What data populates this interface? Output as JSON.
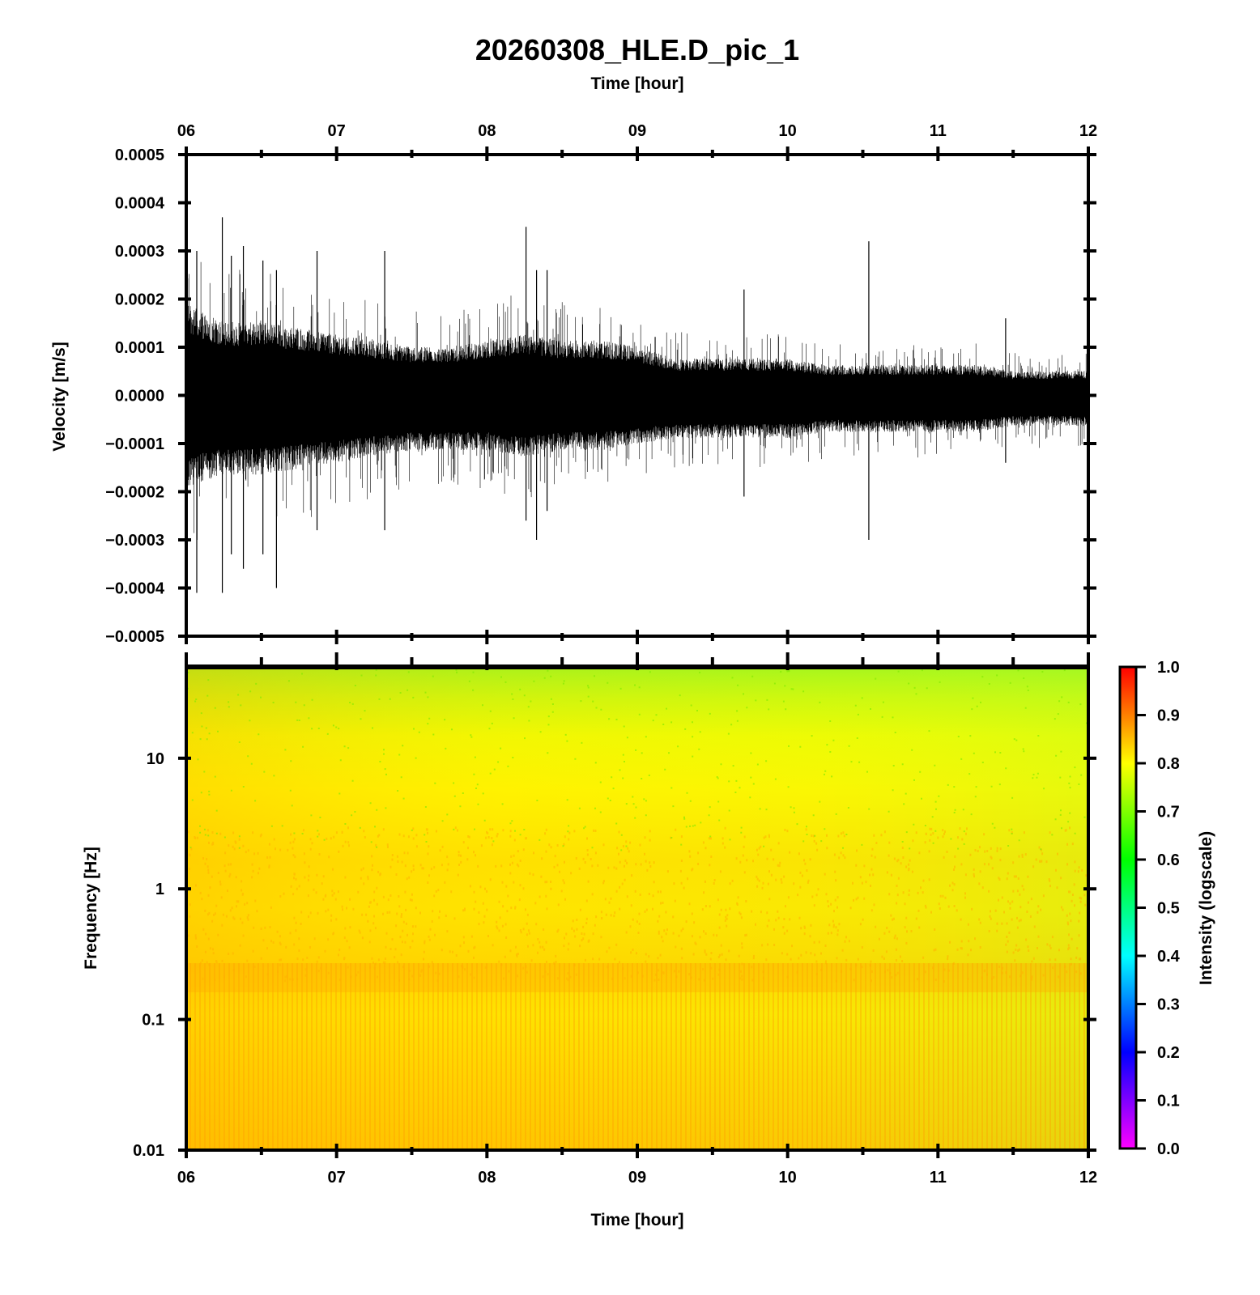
{
  "chart_data": [
    {
      "type": "line",
      "title": "20260308_HLE.D_pic_1",
      "top_xlabel": "Time [hour]",
      "xlabel": "",
      "ylabel": "Velocity [m/s]",
      "xlim": [
        6,
        12
      ],
      "ylim": [
        -0.0005,
        0.0005
      ],
      "x_ticks": [
        "06",
        "07",
        "08",
        "09",
        "10",
        "11",
        "12"
      ],
      "y_ticks": [
        "0.0005",
        "0.0004",
        "0.0003",
        "0.0002",
        "0.0001",
        "0.0000",
        "−0.0001",
        "−0.0002",
        "−0.0003",
        "−0.0004",
        "−0.0005"
      ],
      "series": [
        {
          "color": "#000000",
          "envelope": {
            "x": [
              6.0,
              6.25,
              6.5,
              6.75,
              7.0,
              7.25,
              7.5,
              7.75,
              8.0,
              8.25,
              8.5,
              8.75,
              9.0,
              9.25,
              9.5,
              9.75,
              10.0,
              10.25,
              10.5,
              10.75,
              11.0,
              11.25,
              11.5,
              11.75,
              12.0
            ],
            "upper": [
              0.00015,
              0.00012,
              0.00012,
              0.00011,
              0.0001,
              9e-05,
              8e-05,
              8e-05,
              9e-05,
              0.0001,
              9e-05,
              9e-05,
              8e-05,
              6e-05,
              6e-05,
              6e-05,
              6e-05,
              5e-05,
              5e-05,
              5e-05,
              5e-05,
              5e-05,
              4e-05,
              4e-05,
              4e-05
            ],
            "lower": [
              -0.00015,
              -0.00013,
              -0.00013,
              -0.00012,
              -0.00011,
              -0.0001,
              -9e-05,
              -9e-05,
              -9e-05,
              -0.0001,
              -9e-05,
              -9e-05,
              -8e-05,
              -7e-05,
              -7e-05,
              -7e-05,
              -7e-05,
              -6e-05,
              -6e-05,
              -6e-05,
              -6e-05,
              -6e-05,
              -5e-05,
              -5e-05,
              -5e-05
            ]
          },
          "spikes": [
            {
              "x": 6.07,
              "ymax": 0.0003,
              "ymin": -0.00041
            },
            {
              "x": 6.24,
              "ymax": 0.00037,
              "ymin": -0.00041
            },
            {
              "x": 6.3,
              "ymax": 0.00029,
              "ymin": -0.00033
            },
            {
              "x": 6.38,
              "ymax": 0.00031,
              "ymin": -0.00036
            },
            {
              "x": 6.51,
              "ymax": 0.00028,
              "ymin": -0.00033
            },
            {
              "x": 6.6,
              "ymax": 0.00026,
              "ymin": -0.0004
            },
            {
              "x": 6.87,
              "ymax": 0.0003,
              "ymin": -0.00028
            },
            {
              "x": 7.32,
              "ymax": 0.0003,
              "ymin": -0.00028
            },
            {
              "x": 8.26,
              "ymax": 0.00035,
              "ymin": -0.00026
            },
            {
              "x": 8.33,
              "ymax": 0.00026,
              "ymin": -0.0003
            },
            {
              "x": 8.4,
              "ymax": 0.00026,
              "ymin": -0.00024
            },
            {
              "x": 9.71,
              "ymax": 0.00022,
              "ymin": -0.00021
            },
            {
              "x": 10.54,
              "ymax": 0.00032,
              "ymin": -0.0003
            },
            {
              "x": 11.45,
              "ymax": 0.00016,
              "ymin": -0.00014
            }
          ]
        }
      ]
    },
    {
      "type": "heatmap",
      "xlabel": "Time [hour]",
      "ylabel": "Frequency [Hz]",
      "xlim": [
        6,
        12
      ],
      "ylim": [
        0.01,
        50
      ],
      "yscale": "log",
      "x_ticks": [
        "06",
        "07",
        "08",
        "09",
        "10",
        "11",
        "12"
      ],
      "y_ticks": [
        "10",
        "1",
        "0.1",
        "0.01"
      ],
      "colorbar": {
        "label": "Intensity (logscale)",
        "ticks": [
          "1.0",
          "0.9",
          "0.8",
          "0.7",
          "0.6",
          "0.5",
          "0.4",
          "0.3",
          "0.2",
          "0.1",
          "0.0"
        ],
        "range": [
          0.0,
          1.0
        ],
        "colormap": [
          "#ff00ff",
          "#0000ff",
          "#00ffff",
          "#00ff00",
          "#ffff00",
          "#ff0000"
        ]
      },
      "intensity_profile": {
        "frequency": [
          50,
          20,
          10,
          5,
          2,
          1,
          0.5,
          0.25,
          0.1,
          0.03,
          0.01
        ],
        "intensity_t06": [
          0.72,
          0.76,
          0.8,
          0.82,
          0.83,
          0.84,
          0.83,
          0.85,
          0.82,
          0.84,
          0.86
        ],
        "intensity_t12": [
          0.7,
          0.74,
          0.76,
          0.77,
          0.79,
          0.81,
          0.81,
          0.84,
          0.82,
          0.84,
          0.86
        ]
      }
    }
  ]
}
